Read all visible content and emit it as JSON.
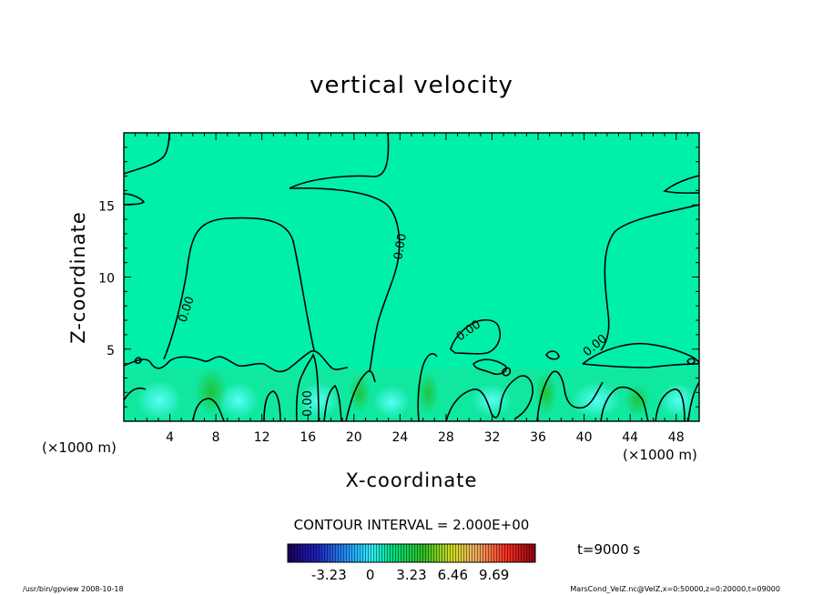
{
  "chart_data": {
    "type": "heatmap",
    "title": "vertical velocity",
    "xlabel": "X-coordinate",
    "ylabel": "Z-coordinate",
    "x_unit": "(×1000 m)",
    "xlim": [
      0,
      50
    ],
    "ylim": [
      0,
      20
    ],
    "x_ticks": [
      4,
      8,
      12,
      16,
      20,
      24,
      28,
      32,
      36,
      40,
      44,
      48
    ],
    "y_ticks": [
      5,
      10,
      15
    ],
    "contour_interval_text": "CONTOUR INTERVAL = 2.000E+00",
    "time_label": "t=9000 s",
    "contour_labels": [
      "0.00",
      "0.00",
      "0.00",
      "0.00",
      "0.00"
    ],
    "colorbar": {
      "tick_labels": [
        "-3.23",
        "0",
        "3.23",
        "6.46",
        "9.69"
      ],
      "tick_values": [
        -3.23,
        0,
        3.23,
        6.46,
        9.69
      ],
      "range": [
        -6.46,
        12.92
      ]
    },
    "background_color": "#00f0a8",
    "footer_left": "/usr/bin/gpview   2008-10-18",
    "footer_right": "MarsCond_VelZ.nc@VelZ,x=0:50000,z=0:20000,t=09000"
  }
}
